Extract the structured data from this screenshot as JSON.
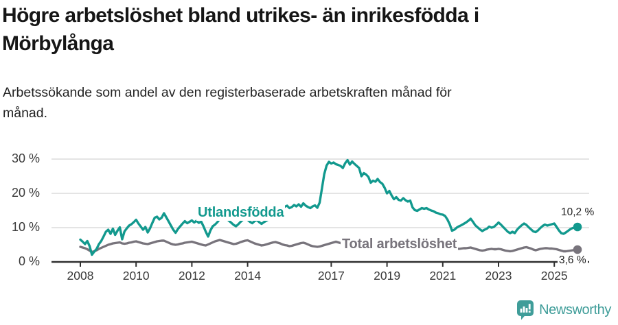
{
  "header": {
    "title_lines": [
      "Högre arbetslöshet bland utrikes- än inrikesfödda i",
      "Mörbylånga"
    ],
    "subtitle_lines": [
      "Arbetssökande som andel av den registerbaserade arbetskraften månad för",
      "månad."
    ]
  },
  "chart_data": {
    "type": "line",
    "title": "Högre arbetslöshet bland utrikes- än inrikesfödda i Mörbylånga",
    "subtitle": "Arbetssökande som andel av den registerbaserade arbetskraften månad för månad.",
    "unit": "%",
    "grid": true,
    "y_axis": {
      "ticks": [
        0,
        10,
        20,
        30
      ],
      "suffix": " %",
      "range": [
        0,
        32
      ]
    },
    "x_axis": {
      "ticks": [
        2008,
        2010,
        2012,
        2014,
        2017,
        2019,
        2021,
        2023,
        2025
      ],
      "range": [
        2008,
        2025.83
      ]
    },
    "colors": {
      "grid": "#dbdbdb",
      "axis": "#2f2f2f",
      "tick_text": "#3a3a3a"
    },
    "series": [
      {
        "name": "Utlandsfödda",
        "color": "#12998e",
        "end_label": "10,2 %",
        "x_start": 2008.0,
        "x_step_years": 0.08333,
        "values": [
          6.5,
          5.9,
          5.2,
          6.1,
          4.6,
          2.1,
          3.0,
          3.8,
          5.2,
          6.1,
          7.4,
          8.8,
          9.4,
          8.2,
          9.7,
          7.9,
          9.1,
          10.1,
          6.6,
          8.9,
          9.8,
          10.6,
          11.0,
          11.6,
          12.3,
          11.2,
          10.3,
          9.4,
          10.2,
          8.6,
          9.8,
          11.4,
          12.9,
          13.2,
          12.4,
          12.9,
          14.2,
          13.0,
          11.8,
          10.6,
          9.4,
          8.5,
          9.6,
          10.4,
          11.2,
          11.9,
          11.3,
          11.7,
          12.1,
          11.5,
          12.0,
          11.4,
          11.8,
          10.4,
          8.8,
          7.4,
          9.2,
          10.4,
          10.9,
          11.6,
          12.5,
          12.9,
          13.4,
          12.6,
          12.0,
          11.4,
          10.8,
          10.4,
          11.0,
          11.7,
          12.3,
          12.7,
          12.3,
          11.7,
          11.3,
          11.9,
          12.2,
          11.6,
          11.1,
          11.6,
          12.0,
          12.4,
          12.8,
          13.3,
          13.8,
          14.4,
          14.9,
          15.4,
          16.1,
          16.4,
          15.7,
          16.0,
          16.6,
          16.2,
          16.8,
          16.1,
          17.1,
          16.4,
          16.0,
          15.7,
          16.2,
          16.5,
          15.8,
          17.3,
          21.5,
          25.6,
          28.1,
          29.2,
          28.7,
          29.0,
          28.5,
          28.3,
          28.0,
          27.4,
          28.8,
          29.7,
          28.4,
          29.3,
          28.6,
          28.0,
          27.4,
          25.0,
          25.9,
          25.5,
          24.8,
          23.1,
          23.7,
          23.4,
          24.2,
          23.3,
          22.8,
          21.6,
          20.0,
          20.7,
          19.4,
          18.3,
          18.9,
          18.1,
          17.9,
          18.6,
          18.0,
          17.6,
          17.9,
          15.9,
          15.1,
          14.9,
          15.3,
          15.7,
          15.5,
          15.7,
          15.3,
          15.0,
          14.8,
          14.4,
          14.2,
          13.9,
          13.8,
          13.4,
          12.4,
          11.0,
          9.1,
          9.4,
          10.0,
          10.4,
          10.7,
          11.1,
          11.5,
          12.0,
          12.6,
          11.7,
          10.7,
          10.1,
          9.5,
          9.0,
          9.4,
          9.7,
          10.3,
          10.0,
          10.2,
          10.8,
          11.5,
          10.9,
          10.2,
          9.5,
          8.8,
          8.4,
          8.8,
          8.4,
          9.4,
          10.1,
          10.7,
          11.2,
          10.8,
          10.1,
          9.5,
          8.9,
          8.7,
          9.2,
          9.9,
          10.5,
          10.9,
          10.6,
          10.8,
          11.0,
          11.2,
          10.2,
          9.2,
          8.4,
          8.2,
          8.6,
          9.1,
          9.6,
          9.9,
          10.0,
          10.2
        ]
      },
      {
        "name": "Total arbetslöshet",
        "color": "#78747c",
        "end_label": "3,6 %",
        "x_start": 2008.0,
        "x_step_years": 0.08333,
        "values": [
          4.4,
          4.2,
          4.0,
          3.7,
          3.3,
          2.9,
          3.1,
          3.4,
          3.8,
          4.1,
          4.4,
          4.7,
          5.0,
          5.2,
          5.4,
          5.5,
          5.6,
          5.7,
          5.4,
          5.3,
          5.4,
          5.6,
          5.7,
          5.9,
          6.0,
          5.8,
          5.6,
          5.4,
          5.3,
          5.2,
          5.4,
          5.6,
          5.8,
          6.0,
          6.1,
          6.2,
          6.2,
          5.9,
          5.6,
          5.3,
          5.1,
          5.0,
          5.1,
          5.3,
          5.4,
          5.6,
          5.7,
          5.8,
          5.9,
          5.7,
          5.5,
          5.3,
          5.1,
          4.9,
          4.8,
          5.1,
          5.4,
          5.7,
          6.0,
          6.2,
          6.4,
          6.2,
          6.0,
          5.8,
          5.6,
          5.4,
          5.2,
          5.3,
          5.5,
          5.8,
          6.0,
          6.2,
          6.3,
          6.0,
          5.7,
          5.4,
          5.2,
          5.0,
          4.8,
          4.9,
          5.1,
          5.3,
          5.5,
          5.7,
          5.8,
          5.6,
          5.4,
          5.1,
          4.9,
          4.8,
          4.6,
          4.7,
          4.9,
          5.1,
          5.3,
          5.5,
          5.6,
          5.4,
          5.1,
          4.8,
          4.6,
          4.5,
          4.4,
          4.5,
          4.7,
          4.9,
          5.1,
          5.3,
          5.5,
          5.7,
          5.9,
          5.7,
          5.5,
          5.3,
          5.1,
          4.9,
          4.8,
          4.9,
          5.0,
          5.1,
          5.2,
          5.4,
          5.5,
          5.3,
          5.1,
          4.9,
          4.7,
          4.5,
          4.6,
          4.7,
          4.8,
          5.0,
          5.1,
          4.9,
          4.7,
          4.5,
          4.4,
          4.3,
          4.4,
          4.5,
          4.6,
          4.7,
          4.8,
          4.9,
          5.0,
          5.1,
          5.2,
          5.3,
          5.4,
          5.3,
          5.2,
          5.1,
          5.0,
          4.9,
          4.8,
          4.9,
          4.9,
          4.7,
          4.5,
          4.3,
          4.1,
          4.0,
          3.9,
          3.8,
          3.9,
          4.0,
          4.0,
          4.1,
          4.2,
          4.0,
          3.8,
          3.6,
          3.4,
          3.3,
          3.4,
          3.6,
          3.7,
          3.8,
          3.7,
          3.7,
          3.8,
          3.7,
          3.5,
          3.3,
          3.2,
          3.1,
          3.2,
          3.4,
          3.6,
          3.8,
          4.0,
          4.2,
          4.3,
          4.1,
          3.9,
          3.6,
          3.4,
          3.6,
          3.8,
          3.9,
          4.0,
          4.0,
          3.9,
          3.9,
          3.8,
          3.7,
          3.5,
          3.3,
          3.1,
          3.1,
          3.2,
          3.3,
          3.4,
          3.5,
          3.6
        ]
      }
    ]
  },
  "footer": {
    "brand": "Newsworthy",
    "brand_color": "#3f9d99",
    "logo_icon": "speech-bubble-bar-chart-icon"
  }
}
